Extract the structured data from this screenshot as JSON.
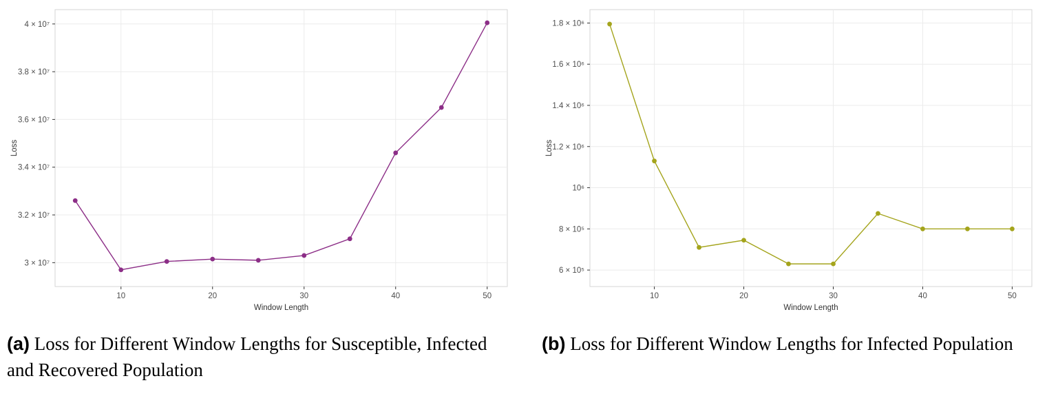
{
  "figure": {
    "background": "#ffffff"
  },
  "captions": {
    "a": {
      "label": "(a)",
      "text": "Loss for Different Window Lengths for Susceptible, Infected and Recovered Population"
    },
    "b": {
      "label": "(b)",
      "text": "Loss for Different Window Lengths for Infected Population"
    }
  },
  "style": {
    "grid_color": "#ebebeb",
    "panel_border_color": "#d6d6d6",
    "tick_color": "#333333",
    "tick_label_color": "#4d4d4d",
    "axis_title_color": "#333333"
  },
  "chart_data": [
    {
      "id": "a",
      "type": "line",
      "title": "",
      "xlabel": "Window Length",
      "ylabel": "Loss",
      "x": [
        5,
        10,
        15,
        20,
        25,
        30,
        35,
        40,
        45,
        50
      ],
      "y": [
        32600000,
        29700000,
        30050000,
        30150000,
        30100000,
        30300000,
        31000000,
        34600000,
        36500000,
        40050000
      ],
      "line_color": "#8c2e87",
      "marker": "circle",
      "xlim": [
        2.8,
        52.2
      ],
      "ylim": [
        29000000,
        40600000
      ],
      "xticks": [
        10,
        20,
        30,
        40,
        50
      ],
      "xtick_labels": [
        "10",
        "20",
        "30",
        "40",
        "50"
      ],
      "yticks": [
        30000000,
        32000000,
        34000000,
        36000000,
        38000000,
        40000000
      ],
      "ytick_labels": [
        "3 × 10⁷",
        "3.2 × 10⁷",
        "3.4 × 10⁷",
        "3.6 × 10⁷",
        "3.8 × 10⁷",
        "4 × 10⁷"
      ],
      "grid": true,
      "legend": "none"
    },
    {
      "id": "b",
      "type": "line",
      "title": "",
      "xlabel": "Window Length",
      "ylabel": "Loss",
      "x": [
        5,
        10,
        15,
        20,
        25,
        30,
        35,
        40,
        45,
        50
      ],
      "y": [
        1795000,
        1130000,
        710000,
        745000,
        630000,
        630000,
        875000,
        800000,
        800000,
        800000
      ],
      "line_color": "#a4a41c",
      "marker": "circle",
      "xlim": [
        2.8,
        52.2
      ],
      "ylim": [
        520000,
        1865000
      ],
      "xticks": [
        10,
        20,
        30,
        40,
        50
      ],
      "xtick_labels": [
        "10",
        "20",
        "30",
        "40",
        "50"
      ],
      "yticks": [
        600000,
        800000,
        1000000,
        1200000,
        1400000,
        1600000,
        1800000
      ],
      "ytick_labels": [
        "6 × 10⁵",
        "8 × 10⁵",
        "10⁶",
        "1.2 × 10⁶",
        "1.4 × 10⁶",
        "1.6 × 10⁶",
        "1.8 × 10⁶"
      ],
      "grid": true,
      "legend": "none"
    }
  ]
}
